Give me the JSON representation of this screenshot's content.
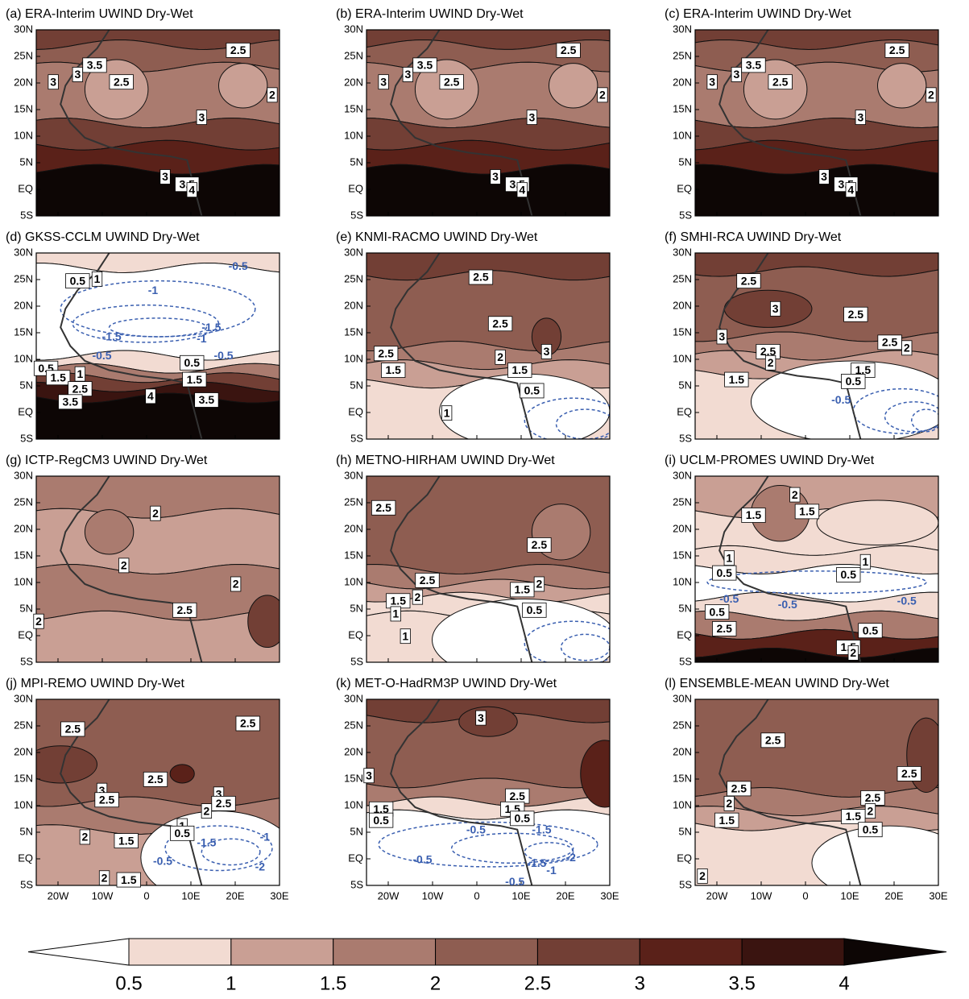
{
  "panels": [
    {
      "title": "(a) ERA-Interim UWIND Dry-Wet",
      "contour_labels": [
        "3",
        "3",
        "3.5",
        "2.5",
        "2.5",
        "2",
        "3",
        "3",
        "3.5",
        "4"
      ]
    },
    {
      "title": "(b) ERA-Interim UWIND Dry-Wet",
      "contour_labels": [
        "3",
        "3",
        "3.5",
        "2.5",
        "2.5",
        "2",
        "3",
        "3",
        "3.5",
        "4"
      ]
    },
    {
      "title": "(c) ERA-Interim UWIND Dry-Wet",
      "contour_labels": [
        "3",
        "3",
        "3.5",
        "2.5",
        "2.5",
        "2",
        "3",
        "3",
        "3.5",
        "4"
      ]
    },
    {
      "title": "(d) GKSS-CCLM UWIND Dry-Wet",
      "contour_labels": [
        "1",
        "0.5",
        "-0.5",
        "-1",
        "-1.5",
        "-1.5",
        "-1",
        "-0.5",
        "-0.5",
        "0.5",
        "0.5",
        "1.5",
        "1",
        "2.5",
        "3.5",
        "4",
        "1.5",
        "3.5"
      ]
    },
    {
      "title": "(e) KNMI-RACMO UWIND Dry-Wet",
      "contour_labels": [
        "2.5",
        "2.5",
        "3",
        "2",
        "2.5",
        "1.5",
        "1.5",
        "0.5",
        "1"
      ]
    },
    {
      "title": "(f) SMHI-RCA UWIND Dry-Wet",
      "contour_labels": [
        "2.5",
        "3",
        "3",
        "2.5",
        "2.5",
        "2",
        "2.5",
        "2",
        "1.5",
        "1.5",
        "0.5",
        "-0.5"
      ]
    },
    {
      "title": "(g) ICTP-RegCM3 UWIND Dry-Wet",
      "contour_labels": [
        "2",
        "2",
        "2",
        "2.5",
        "2"
      ]
    },
    {
      "title": "(h) METNO-HIRHAM UWIND Dry-Wet",
      "contour_labels": [
        "2.5",
        "2.5",
        "2.5",
        "2",
        "1.5",
        "1",
        "1",
        "1.5",
        "2",
        "0.5"
      ]
    },
    {
      "title": "(i) UCLM-PROMES UWIND Dry-Wet",
      "contour_labels": [
        "2",
        "1.5",
        "1.5",
        "1",
        "0.5",
        "1",
        "0.5",
        "-0.5",
        "-0.5",
        "-0.5",
        "0.5",
        "2.5",
        "0.5",
        "1.5",
        "2"
      ]
    },
    {
      "title": "(j) MPI-REMO UWIND Dry-Wet",
      "contour_labels": [
        "2.5",
        "2.5",
        "2.5",
        "3",
        "2.5",
        "3",
        "2.5",
        "2",
        "1",
        "0.5",
        "-1.5",
        "-1",
        "-0.5",
        "-2",
        "1.5",
        "2",
        "2",
        "1.5"
      ]
    },
    {
      "title": "(k) MET-O-HadRM3P UWIND Dry-Wet",
      "contour_labels": [
        "3",
        "3",
        "2.5",
        "1.5",
        "0.5",
        "1.5",
        "0.5",
        "-0.5",
        "-1.5",
        "-0.5",
        "-2",
        "-1.5",
        "-1",
        "-0.5"
      ]
    },
    {
      "title": "(l) ENSEMBLE-MEAN UWIND Dry-Wet",
      "contour_labels": [
        "2.5",
        "2.5",
        "2.5",
        "2",
        "2.5",
        "2",
        "1.5",
        "1.5",
        "0.5",
        "2"
      ]
    }
  ],
  "yticks": [
    "30N",
    "25N",
    "20N",
    "15N",
    "10N",
    "5N",
    "EQ",
    "5S"
  ],
  "xticks": [
    "20W",
    "10W",
    "0",
    "10E",
    "20E",
    "30E"
  ],
  "colorbar": {
    "levels": [
      0.5,
      1,
      1.5,
      2,
      2.5,
      3,
      3.5,
      4
    ],
    "colors": [
      "#ffffff",
      "#f2dbd2",
      "#c99f94",
      "#aa7b6f",
      "#8e5d51",
      "#723f35",
      "#5a2119",
      "#3a1410",
      "#0d0605"
    ]
  }
}
